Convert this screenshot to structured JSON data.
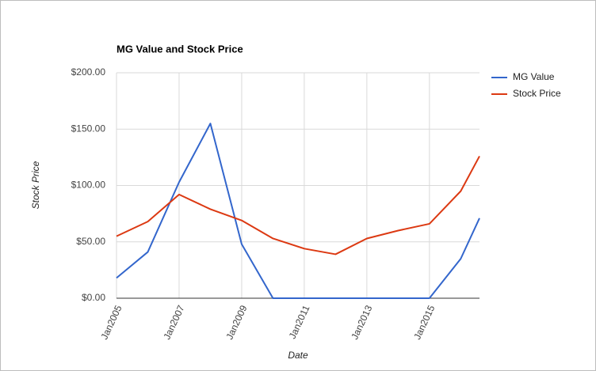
{
  "chart_data": {
    "type": "line",
    "title": "MG Value and Stock Price",
    "x_label": "Date",
    "y_label": "Stock Price",
    "x": [
      2005,
      2006,
      2007,
      2008,
      2009,
      2010,
      2011,
      2012,
      2013,
      2014,
      2015,
      2016,
      2016.6
    ],
    "series": [
      {
        "name": "MG Value",
        "color": "#3366cc",
        "values": [
          18,
          41,
          103,
          155,
          48,
          0,
          0,
          0,
          0,
          0,
          0,
          35,
          71
        ]
      },
      {
        "name": "Stock Price",
        "color": "#dc3912",
        "values": [
          55,
          68,
          92,
          79,
          69,
          53,
          44,
          39,
          53,
          60,
          66,
          95,
          126
        ]
      }
    ],
    "xlim": [
      2005,
      2016.6
    ],
    "xticks": [
      {
        "value": 2005,
        "label": "Jan2005"
      },
      {
        "value": 2007,
        "label": "Jan2007"
      },
      {
        "value": 2009,
        "label": "Jan2009"
      },
      {
        "value": 2011,
        "label": "Jan2011"
      },
      {
        "value": 2013,
        "label": "Jan2013"
      },
      {
        "value": 2015,
        "label": "Jan2015"
      }
    ],
    "ylim": [
      0,
      200
    ],
    "yticks": [
      {
        "value": 0,
        "label": "$0.00"
      },
      {
        "value": 50,
        "label": "$50.00"
      },
      {
        "value": 100,
        "label": "$100.00"
      },
      {
        "value": 150,
        "label": "$150.00"
      },
      {
        "value": 200,
        "label": "$200.00"
      }
    ],
    "grid": true,
    "legend": "right"
  }
}
